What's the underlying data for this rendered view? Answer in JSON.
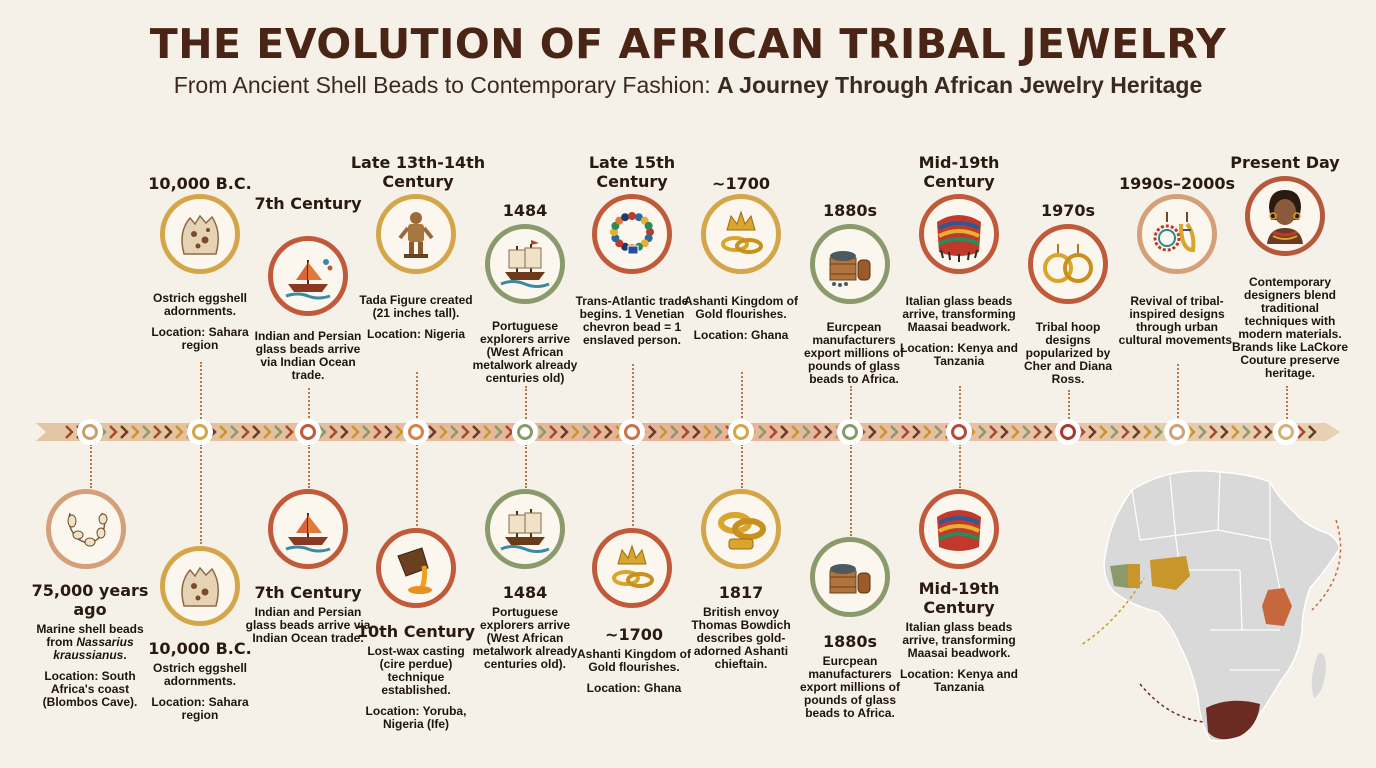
{
  "header": {
    "title": "THE EVOLUTION OF AFRICAN TRIBAL JEWELRY",
    "subtitle_plain": "From Ancient Shell Beads to Contemporary Fashion: ",
    "subtitle_bold": "A Journey Through African Jewelry Heritage"
  },
  "colors": {
    "title": "#4a2414",
    "timeline_band": "#e8cba8",
    "node_ring": "#ffffff",
    "map_land": "#d9d9d9",
    "map_gold": "#c9962c",
    "map_green": "#8a9a6a",
    "map_orange": "#c7683c",
    "map_maroon": "#6b2a22"
  },
  "top_events": [
    {
      "date": "10,000 B.C.",
      "desc": "Ostrich eggshell adornments.",
      "location": "Location: Sahara region",
      "icon": "eggshell-icon"
    },
    {
      "date": "7th Century",
      "desc": "Indian and Persian glass beads arrive via Indian Ocean trade.",
      "location": "",
      "icon": "ship-icon"
    },
    {
      "date": "Late 13th-14th Century",
      "desc": "Tada Figure created (21 inches tall).",
      "location": "Location: Nigeria",
      "icon": "tada-figure-icon"
    },
    {
      "date": "1484",
      "desc": "Portuguese explorers arrive (West African metalwork already centuries old)",
      "location": "",
      "icon": "caravel-icon"
    },
    {
      "date": "Late 15th Century",
      "desc": "Trans-Atlantic trade begins. 1 Venetian chevron bead = 1 enslaved person.",
      "location": "",
      "icon": "bead-necklace-icon"
    },
    {
      "date": "~1700",
      "desc": "Ashanti Kingdom of Gold flourishes.",
      "location": "Location: Ghana",
      "icon": "crown-rings-icon"
    },
    {
      "date": "1880s",
      "desc": "Eurcpean manufacturers export millions of pounds of glass beads to Africa.",
      "location": "",
      "icon": "crate-barrel-icon"
    },
    {
      "date": "Mid-19th Century",
      "desc": "Italian glass beads arrive, transforming Maasai beadwork.",
      "location": "Location: Kenya and Tanzania",
      "icon": "maasai-collar-icon"
    },
    {
      "date": "1970s",
      "desc": "Tribal hoop designs popularized by Cher and Diana Ross.",
      "location": "",
      "icon": "hoop-earrings-icon"
    },
    {
      "date": "1990s–2000s",
      "desc": "Revival of tribal-inspired designs through urban cultural movements.",
      "location": "",
      "icon": "beaded-earrings-icon"
    },
    {
      "date": "Present Day",
      "desc": "Contemporary designers blend traditional techniques with modern materials. Brands like LaCkore Couture preserve heritage.",
      "location": "",
      "icon": "portrait-icon"
    }
  ],
  "bottom_events": [
    {
      "date": "75,000 years ago",
      "desc_pre": "Marine shell beads from ",
      "desc_italic": "Nassarius kraussianus",
      "desc_post": ".",
      "location": "Location: South Africa's coast (Blombos Cave).",
      "icon": "shell-beads-icon"
    },
    {
      "date": "10,000 B.C.",
      "desc": "Ostrich eggshell adornments.",
      "location": "Location: Sahara region",
      "icon": "eggshell-icon"
    },
    {
      "date": "7th Century",
      "desc": "Indian and Persian glass beads arrive via Indian Ocean trade.",
      "location": "",
      "icon": "ship-icon"
    },
    {
      "date": "10th Century",
      "desc": "Lost-wax casting (cire perdue) technique established.",
      "location": "Location: Yoruba, Nigeria (Ife)",
      "icon": "casting-pot-icon"
    },
    {
      "date": "1484",
      "desc": "Portuguese explorers arrive (West African metalwork already centuries old).",
      "location": "",
      "icon": "caravel-icon"
    },
    {
      "date": "~1700",
      "desc": "Ashanti Kingdom of Gold flourishes.",
      "location": "Location: Ghana",
      "icon": "crown-rings-icon"
    },
    {
      "date": "1817",
      "desc": "British envoy Thomas Bowdich describes gold-adorned Ashanti chieftain.",
      "location": "",
      "icon": "gold-bangles-icon"
    },
    {
      "date": "1880s",
      "desc": "Eurcpean manufacturers export millions of pounds of glass beads to Africa.",
      "location": "",
      "icon": "crate-barrel-icon"
    },
    {
      "date": "Mid-19th Century",
      "desc": "Italian glass beads arrive, transforming Maasai beadwork.",
      "location": "Location: Kenya and Tanzania",
      "icon": "maasai-collar-icon"
    }
  ]
}
